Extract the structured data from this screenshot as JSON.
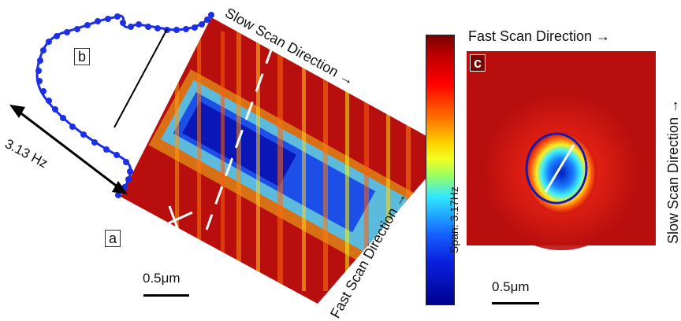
{
  "labels": {
    "panel_a": "a",
    "panel_b": "b",
    "panel_c": "c",
    "frequency": "3.13 Hz",
    "slow_scan_a": "Slow Scan Direction →",
    "fast_scan_a": "Fast Scan Direction →",
    "fast_scan_c": "Fast Scan Direction →",
    "slow_scan_c": "Slow Scan Direction →",
    "scale_a": "0.5μm",
    "scale_c": "0.5μm",
    "colorbar_span": "Span: 3.17Hz"
  },
  "colors": {
    "profile": "#1d2fe6",
    "map_background": "#b80e0e",
    "ring": "#1a1aa8"
  }
}
